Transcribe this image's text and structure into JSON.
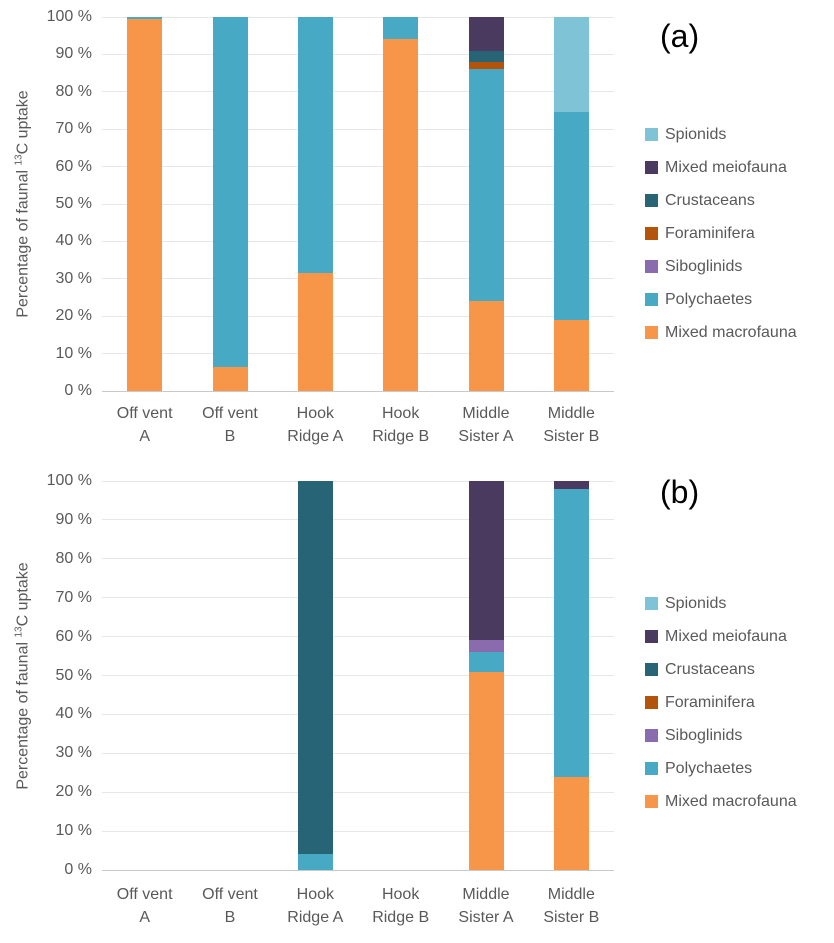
{
  "y_axis": {
    "title_prefix": "Percentage of faunal ",
    "title_sup": "13",
    "title_suffix": "C uptake",
    "tick_labels": [
      "0 %",
      "10 %",
      "20 %",
      "30 %",
      "40 %",
      "50 %",
      "60 %",
      "70 %",
      "80 %",
      "90 %",
      "100 %"
    ]
  },
  "palette": {
    "Spionids": "#7EC4D6",
    "Mixed meiofauna": "#4B3A60",
    "Crustaceans": "#266476",
    "Foraminifera": "#B4530A",
    "Siboglinids": "#8A6BAE",
    "Polychaetes": "#48A9C4",
    "Mixed macrofauna": "#F79649"
  },
  "legend": {
    "position": "right",
    "items": [
      {
        "label": "Spionids"
      },
      {
        "label": "Mixed meiofauna"
      },
      {
        "label": "Crustaceans"
      },
      {
        "label": "Foraminifera"
      },
      {
        "label": "Siboglinids"
      },
      {
        "label": "Polychaetes"
      },
      {
        "label": "Mixed macrofauna"
      }
    ]
  },
  "chart_data": [
    {
      "type": "bar",
      "stacked": true,
      "panel_label": "(a)",
      "title": "",
      "xlabel": "",
      "ylabel": "Percentage of faunal 13C uptake",
      "ylim": [
        0,
        100
      ],
      "ytick_step": 10,
      "grid": true,
      "legend_position": "right",
      "categories": [
        "Off vent A",
        "Off vent B",
        "Hook Ridge A",
        "Hook Ridge B",
        "Middle Sister A",
        "Middle Sister B"
      ],
      "categories_wrapped": [
        "Off vent\nA",
        "Off vent\nB",
        "Hook\nRidge A",
        "Hook\nRidge B",
        "Middle\nSister A",
        "Middle\nSister B"
      ],
      "series": [
        {
          "name": "Mixed macrofauna",
          "values": [
            99.5,
            6.5,
            31.5,
            94,
            24,
            19
          ]
        },
        {
          "name": "Polychaetes",
          "values": [
            0.5,
            93.5,
            68.5,
            6,
            62,
            55.5
          ]
        },
        {
          "name": "Siboglinids",
          "values": [
            0,
            0,
            0,
            0,
            0,
            0
          ]
        },
        {
          "name": "Foraminifera",
          "values": [
            0,
            0,
            0,
            0,
            2,
            0
          ]
        },
        {
          "name": "Crustaceans",
          "values": [
            0,
            0,
            0,
            0,
            3,
            0
          ]
        },
        {
          "name": "Mixed meiofauna",
          "values": [
            0,
            0,
            0,
            0,
            9,
            0
          ]
        },
        {
          "name": "Spionids",
          "values": [
            0,
            0,
            0,
            0,
            0,
            25.5
          ]
        }
      ]
    },
    {
      "type": "bar",
      "stacked": true,
      "panel_label": "(b)",
      "title": "",
      "xlabel": "",
      "ylabel": "Percentage of faunal 13C uptake",
      "ylim": [
        0,
        100
      ],
      "ytick_step": 10,
      "grid": true,
      "legend_position": "right",
      "categories": [
        "Off vent A",
        "Off vent B",
        "Hook Ridge A",
        "Hook Ridge B",
        "Middle Sister A",
        "Middle Sister B"
      ],
      "categories_wrapped": [
        "Off vent\nA",
        "Off vent\nB",
        "Hook\nRidge A",
        "Hook\nRidge B",
        "Middle\nSister A",
        "Middle\nSister B"
      ],
      "series": [
        {
          "name": "Mixed macrofauna",
          "values": [
            0,
            0,
            0,
            0,
            51,
            24
          ]
        },
        {
          "name": "Polychaetes",
          "values": [
            0,
            0,
            4,
            0,
            5,
            74
          ]
        },
        {
          "name": "Siboglinids",
          "values": [
            0,
            0,
            0,
            0,
            3,
            0
          ]
        },
        {
          "name": "Foraminifera",
          "values": [
            0,
            0,
            0,
            0,
            0,
            0
          ]
        },
        {
          "name": "Crustaceans",
          "values": [
            0,
            0,
            96,
            0,
            0,
            0
          ]
        },
        {
          "name": "Mixed meiofauna",
          "values": [
            0,
            0,
            0,
            0,
            41,
            2
          ]
        },
        {
          "name": "Spionids",
          "values": [
            0,
            0,
            0,
            0,
            0,
            0
          ]
        }
      ]
    }
  ]
}
